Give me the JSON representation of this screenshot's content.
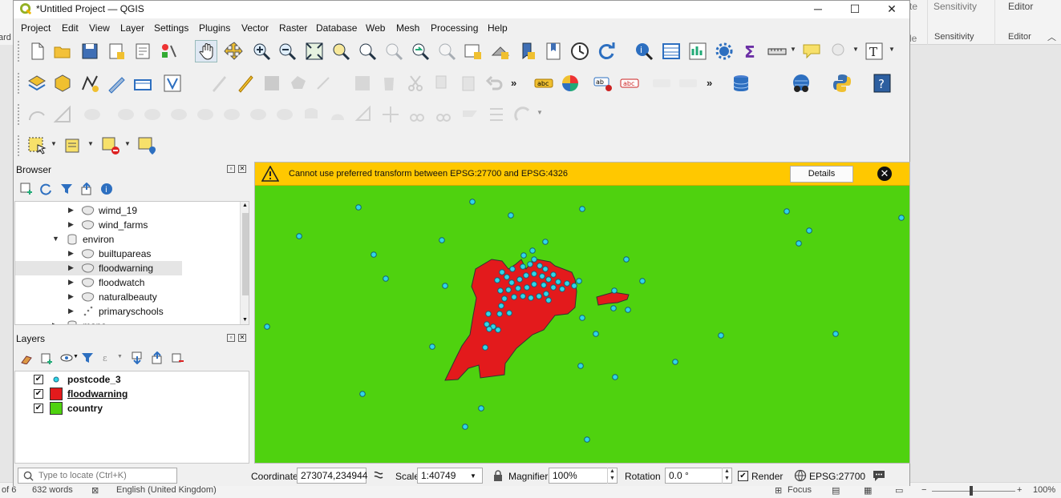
{
  "background_app": {
    "ribbon_tabs": [
      "Sensitivity",
      "Editor"
    ],
    "ribbon_groups": [
      "Sensitivity",
      "Editor"
    ],
    "left_fragment": "ard",
    "top_fragment": "te",
    "top_fragment2": "le",
    "status": {
      "page": "of 6",
      "words": "632 words",
      "language": "English (United Kingdom)",
      "focus": "Focus",
      "zoom": "100%"
    }
  },
  "window": {
    "title": "*Untitled Project — QGIS",
    "controls": {
      "minimize": "─",
      "maximize": "☐",
      "close": "✕"
    }
  },
  "menubar": [
    "Project",
    "Edit",
    "View",
    "Layer",
    "Settings",
    "Plugins",
    "Vector",
    "Raster",
    "Database",
    "Web",
    "Mesh",
    "Processing",
    "Help"
  ],
  "browser": {
    "title": "Browser",
    "items": [
      {
        "label": "wimd_19",
        "kind": "polygon",
        "indent": 2,
        "expandable": true
      },
      {
        "label": "wind_farms",
        "kind": "polygon",
        "indent": 2,
        "expandable": true
      },
      {
        "label": "environ",
        "kind": "database",
        "indent": 1,
        "expandable": true,
        "expanded": true
      },
      {
        "label": "builtupareas",
        "kind": "polygon",
        "indent": 2,
        "expandable": true
      },
      {
        "label": "floodwarning",
        "kind": "polygon",
        "indent": 2,
        "expandable": true,
        "selected": true
      },
      {
        "label": "floodwatch",
        "kind": "polygon",
        "indent": 2,
        "expandable": true
      },
      {
        "label": "naturalbeauty",
        "kind": "polygon",
        "indent": 2,
        "expandable": true
      },
      {
        "label": "primaryschools",
        "kind": "points",
        "indent": 2,
        "expandable": true
      },
      {
        "label": "maps",
        "kind": "database",
        "indent": 1,
        "expandable": true
      }
    ]
  },
  "layers": {
    "title": "Layers",
    "items": [
      {
        "label": "postcode_3",
        "checked": true,
        "symbol": "point",
        "color": "#2fd6e8"
      },
      {
        "label": "floodwarning",
        "checked": true,
        "symbol": "fill",
        "color": "#e31a1c",
        "active": true
      },
      {
        "label": "country",
        "checked": true,
        "symbol": "fill",
        "color": "#4fd20f"
      }
    ]
  },
  "message_bar": {
    "text": "Cannot use preferred transform between EPSG:27700 and EPSG:4326",
    "button": "Details"
  },
  "map": {
    "background_color": "#4fd20f",
    "flood_color": "#e31a1c",
    "point_color": "#2fd6e8"
  },
  "statusbar": {
    "locator_placeholder": "Type to locate (Ctrl+K)",
    "coordinate_label": "Coordinate",
    "coordinate_value": "273074,234944",
    "scale_label": "Scale",
    "scale_value": "1:40749",
    "magnifier_label": "Magnifier",
    "magnifier_value": "100%",
    "rotation_label": "Rotation",
    "rotation_value": "0.0 °",
    "render_label": "Render",
    "crs": "EPSG:27700"
  }
}
